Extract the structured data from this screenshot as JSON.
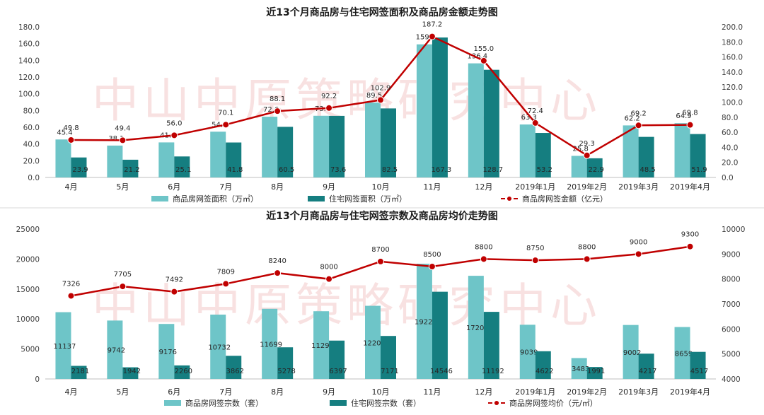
{
  "chart_data": [
    {
      "type": "bar",
      "title": "近13个月商品房与住宅网签面积及商品房金额走势图",
      "categories": [
        "4月",
        "5月",
        "6月",
        "7月",
        "8月",
        "9月",
        "10月",
        "11月",
        "12月",
        "2019年1月",
        "2019年2月",
        "2019年3月",
        "2019年4月"
      ],
      "ylim_left": [
        0,
        180
      ],
      "ylim_right": [
        0,
        200
      ],
      "ticks_left": [
        "0.0",
        "20.0",
        "40.0",
        "60.0",
        "80.0",
        "100.0",
        "120.0",
        "140.0",
        "160.0",
        "180.0"
      ],
      "ticks_right": [
        "0.0",
        "20.0",
        "40.0",
        "60.0",
        "80.0",
        "100.0",
        "120.0",
        "140.0",
        "160.0",
        "180.0",
        "200.0"
      ],
      "series": [
        {
          "name": "商品房网签面积（万㎡）",
          "kind": "bar",
          "axis": "left",
          "color": "#6ec5c8",
          "values": [
            45.4,
            38.1,
            41.9,
            54.7,
            72.6,
            73.7,
            89.5,
            159.1,
            136.4,
            63.3,
            25.8,
            62.2,
            64.9
          ],
          "labels": [
            "45.4",
            "38.1",
            "41.9",
            "54.7",
            "72.6",
            "73.7",
            "89.5",
            "159.1",
            "136.4",
            "63.3",
            "25.8",
            "62.2",
            "64.9"
          ]
        },
        {
          "name": "住宅网签面积（万㎡）",
          "kind": "bar",
          "axis": "left",
          "color": "#157e80",
          "values": [
            23.9,
            21.2,
            25.1,
            41.8,
            60.5,
            73.6,
            82.5,
            167.3,
            128.7,
            53.2,
            22.9,
            48.5,
            51.9
          ],
          "labels": [
            "23.9",
            "21.2",
            "25.1",
            "41.8",
            "60.5",
            "73.6",
            "82.5",
            "167.3",
            "128.7",
            "53.2",
            "22.9",
            "48.5",
            "51.9"
          ]
        },
        {
          "name": "商品房网签金额（亿元）",
          "kind": "line",
          "axis": "right",
          "color": "#c00000",
          "values": [
            49.8,
            49.4,
            56.0,
            70.1,
            88.1,
            92.2,
            102.9,
            187.2,
            155.0,
            72.4,
            29.3,
            69.2,
            69.8
          ],
          "labels": [
            "49.8",
            "49.4",
            "56.0",
            "70.1",
            "88.1",
            "92.2",
            "102.9",
            "187.2",
            "155.0",
            "72.4",
            "29.3",
            "69.2",
            "69.8"
          ]
        }
      ]
    },
    {
      "type": "bar",
      "title": "近13个月商品房与住宅网签宗数及商品房均价走势图",
      "categories": [
        "4月",
        "5月",
        "6月",
        "7月",
        "8月",
        "9月",
        "10月",
        "11月",
        "12月",
        "2019年1月",
        "2019年2月",
        "2019年3月",
        "2019年4月"
      ],
      "ylim_left": [
        0,
        25000
      ],
      "ylim_right": [
        4000,
        10000
      ],
      "ticks_left": [
        "0",
        "5000",
        "10000",
        "15000",
        "20000",
        "25000"
      ],
      "ticks_right": [
        "4000",
        "5000",
        "6000",
        "7000",
        "8000",
        "9000",
        "10000"
      ],
      "series": [
        {
          "name": "商品房网签宗数（套）",
          "kind": "bar",
          "axis": "left",
          "color": "#6ec5c8",
          "values": [
            11137,
            9742,
            9176,
            10732,
            11699,
            11296,
            12200,
            19222,
            17205,
            9039,
            3483,
            9002,
            8659
          ],
          "labels": [
            "11137",
            "9742",
            "9176",
            "10732",
            "11699",
            "11296",
            "12200",
            "19222",
            "17205",
            "9039",
            "3483",
            "9002",
            "8659"
          ]
        },
        {
          "name": "住宅网签宗数（套）",
          "kind": "bar",
          "axis": "left",
          "color": "#157e80",
          "values": [
            2181,
            1942,
            2260,
            3862,
            5278,
            6397,
            7171,
            14546,
            11192,
            4622,
            1991,
            4217,
            4517
          ],
          "labels": [
            "2181",
            "1942",
            "2260",
            "3862",
            "5278",
            "6397",
            "7171",
            "14546",
            "11192",
            "4622",
            "1991",
            "4217",
            "4517"
          ]
        },
        {
          "name": "商品房网签均价（元/㎡）",
          "kind": "line",
          "axis": "right",
          "color": "#c00000",
          "values": [
            7326,
            7705,
            7492,
            7809,
            8240,
            8000,
            8700,
            8500,
            8800,
            8750,
            8800,
            9000,
            9300
          ],
          "labels": [
            "7326",
            "7705",
            "7492",
            "7809",
            "8240",
            "8000",
            "8700",
            "8500",
            "8800",
            "8750",
            "8800",
            "9000",
            "9300"
          ]
        }
      ]
    }
  ],
  "watermark": "中山中原策略研究中心"
}
